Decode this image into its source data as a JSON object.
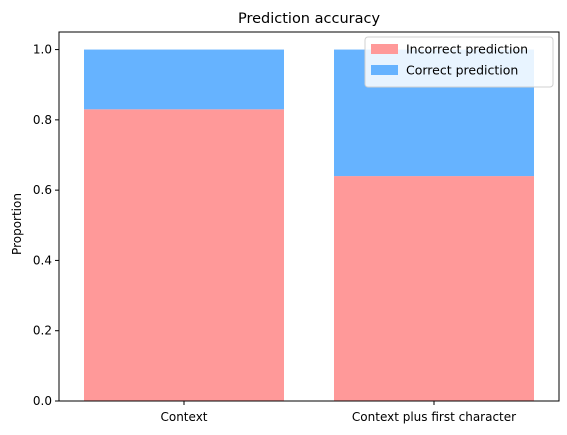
{
  "chart_data": {
    "type": "bar",
    "stacked": true,
    "title": "Prediction accuracy",
    "xlabel": "",
    "ylabel": "Proportion",
    "ylim": [
      0,
      1.05
    ],
    "yticks": [
      "0.0",
      "0.2",
      "0.4",
      "0.6",
      "0.8",
      "1.0"
    ],
    "categories": [
      "Context",
      "Context plus first character"
    ],
    "series": [
      {
        "name": "Incorrect prediction",
        "values": [
          0.83,
          0.64
        ],
        "color": "#ff9999"
      },
      {
        "name": "Correct prediction",
        "values": [
          0.17,
          0.36
        ],
        "color": "#66b3ff"
      }
    ],
    "legend": "top-right",
    "grid": false
  }
}
